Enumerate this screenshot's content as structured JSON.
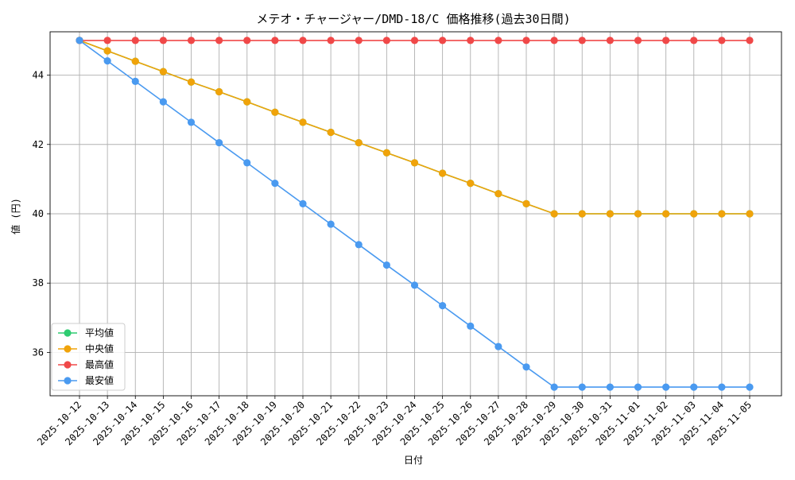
{
  "chart_data": {
    "type": "line",
    "title": "メテオ・チャージャー/DMD-18/C 価格推移(過去30日間)",
    "xlabel": "日付",
    "ylabel": "値 (円)",
    "ylim": [
      34.75,
      45.25
    ],
    "yticks": [
      36,
      38,
      40,
      42,
      44
    ],
    "grid": true,
    "legend_position": "lower-left",
    "categories": [
      "2025-10-12",
      "2025-10-13",
      "2025-10-14",
      "2025-10-15",
      "2025-10-16",
      "2025-10-17",
      "2025-10-18",
      "2025-10-19",
      "2025-10-20",
      "2025-10-21",
      "2025-10-22",
      "2025-10-23",
      "2025-10-24",
      "2025-10-25",
      "2025-10-26",
      "2025-10-27",
      "2025-10-28",
      "2025-10-29",
      "2025-10-30",
      "2025-10-31",
      "2025-11-01",
      "2025-11-02",
      "2025-11-03",
      "2025-11-04",
      "2025-11-05"
    ],
    "series": [
      {
        "name": "平均値",
        "color": "#2ecc71",
        "values": [
          45.0,
          44.7,
          44.4,
          44.1,
          43.8,
          43.52,
          43.23,
          42.93,
          42.64,
          42.35,
          42.05,
          41.76,
          41.47,
          41.17,
          40.88,
          40.58,
          40.29,
          40.0,
          40.0,
          40.0,
          40.0,
          40.0,
          40.0,
          40.0,
          40.0
        ]
      },
      {
        "name": "中央値",
        "color": "#f0a30a",
        "values": [
          45.0,
          44.7,
          44.4,
          44.1,
          43.8,
          43.52,
          43.23,
          42.93,
          42.64,
          42.35,
          42.05,
          41.76,
          41.47,
          41.17,
          40.88,
          40.58,
          40.29,
          40.0,
          40.0,
          40.0,
          40.0,
          40.0,
          40.0,
          40.0,
          40.0
        ]
      },
      {
        "name": "最高値",
        "color": "#f04848",
        "values": [
          45,
          45,
          45,
          45,
          45,
          45,
          45,
          45,
          45,
          45,
          45,
          45,
          45,
          45,
          45,
          45,
          45,
          45,
          45,
          45,
          45,
          45,
          45,
          45,
          45
        ]
      },
      {
        "name": "最安値",
        "color": "#4a9af0",
        "values": [
          45.0,
          44.41,
          43.82,
          43.23,
          42.64,
          42.05,
          41.47,
          40.88,
          40.29,
          39.7,
          39.11,
          38.52,
          37.94,
          37.35,
          36.76,
          36.17,
          35.58,
          35.0,
          35.0,
          35.0,
          35.0,
          35.0,
          35.0,
          35.0,
          35.0
        ]
      }
    ]
  }
}
